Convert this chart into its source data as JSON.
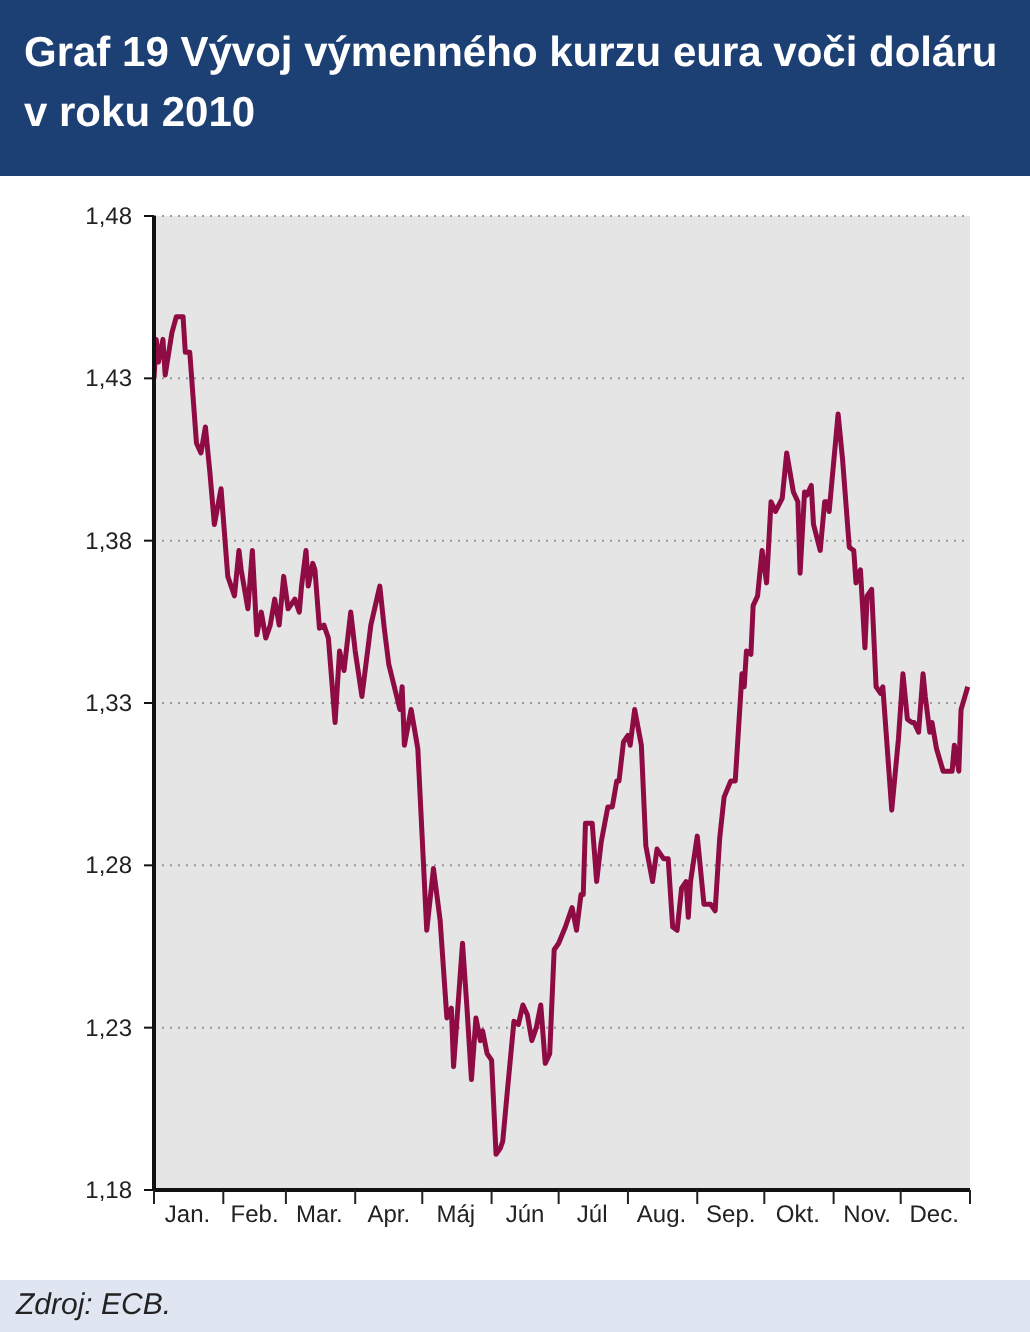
{
  "chart_data": {
    "type": "line",
    "title": "Graf 19 Vývoj výmenného kurzu eura voči doláru v roku 2010",
    "annotations": [
      "Zdroj: ECB."
    ],
    "xlim": [
      "2010-01-01",
      "2011-01-01"
    ],
    "xticks": [
      {
        "value": "2010-01-01",
        "label": null
      },
      {
        "value": "2010-01-16",
        "label": "Jan."
      },
      {
        "value": "2010-02-01",
        "label": null
      },
      {
        "value": "2010-02-15",
        "label": "Feb."
      },
      {
        "value": "2010-03-01",
        "label": null
      },
      {
        "value": "2010-03-16",
        "label": "Mar."
      },
      {
        "value": "2010-04-01",
        "label": null
      },
      {
        "value": "2010-04-16",
        "label": "Apr."
      },
      {
        "value": "2010-05-01",
        "label": null
      },
      {
        "value": "2010-05-16",
        "label": "Máj"
      },
      {
        "value": "2010-06-01",
        "label": null
      },
      {
        "value": "2010-06-16",
        "label": "Jún"
      },
      {
        "value": "2010-07-01",
        "label": null
      },
      {
        "value": "2010-07-16",
        "label": "Júl"
      },
      {
        "value": "2010-08-01",
        "label": null
      },
      {
        "value": "2010-08-16",
        "label": "Aug."
      },
      {
        "value": "2010-09-01",
        "label": null
      },
      {
        "value": "2010-09-16",
        "label": "Sep."
      },
      {
        "value": "2010-10-01",
        "label": null
      },
      {
        "value": "2010-10-16",
        "label": "Okt."
      },
      {
        "value": "2010-11-01",
        "label": null
      },
      {
        "value": "2010-11-16",
        "label": "Nov."
      },
      {
        "value": "2010-12-01",
        "label": null
      },
      {
        "value": "2010-12-16",
        "label": "Dec."
      },
      {
        "value": "2011-01-01",
        "label": null
      }
    ],
    "ylim": [
      1.18,
      1.48
    ],
    "yticks": [
      {
        "value": 1.18,
        "label": "1,18"
      },
      {
        "value": 1.23,
        "label": "1,23"
      },
      {
        "value": 1.28,
        "label": "1,28"
      },
      {
        "value": 1.33,
        "label": "1,33"
      },
      {
        "value": 1.38,
        "label": "1,38"
      },
      {
        "value": 1.43,
        "label": "1,43"
      },
      {
        "value": 1.48,
        "label": "1,48"
      }
    ],
    "grid": "y",
    "legend": false,
    "marker": "none",
    "line_style": "solid",
    "series": [
      {
        "color": "#8e0b43",
        "x": [
          "2010-01-01",
          "2010-01-02",
          "2010-01-03",
          "2010-01-05",
          "2010-01-06",
          "2010-01-09",
          "2010-01-11",
          "2010-01-14",
          "2010-01-15",
          "2010-01-17",
          "2010-01-20",
          "2010-01-22",
          "2010-01-24",
          "2010-01-26",
          "2010-01-28",
          "2010-01-31",
          "2010-02-03",
          "2010-02-06",
          "2010-02-08",
          "2010-02-09",
          "2010-02-12",
          "2010-02-14",
          "2010-02-16",
          "2010-02-18",
          "2010-02-20",
          "2010-02-22",
          "2010-02-24",
          "2010-02-26",
          "2010-02-28",
          "2010-03-02",
          "2010-03-05",
          "2010-03-07",
          "2010-03-08",
          "2010-03-10",
          "2010-03-11",
          "2010-03-13",
          "2010-03-14",
          "2010-03-16",
          "2010-03-18",
          "2010-03-20",
          "2010-03-23",
          "2010-03-25",
          "2010-03-27",
          "2010-03-30",
          "2010-04-01",
          "2010-04-04",
          "2010-04-08",
          "2010-04-12",
          "2010-04-14",
          "2010-04-16",
          "2010-04-21",
          "2010-04-22",
          "2010-04-23",
          "2010-04-26",
          "2010-04-29",
          "2010-05-03",
          "2010-05-06",
          "2010-05-09",
          "2010-05-10",
          "2010-05-12",
          "2010-05-14",
          "2010-05-15",
          "2010-05-19",
          "2010-05-21",
          "2010-05-23",
          "2010-05-25",
          "2010-05-27",
          "2010-05-28",
          "2010-05-30",
          "2010-06-01",
          "2010-06-03",
          "2010-06-05",
          "2010-06-06",
          "2010-06-08",
          "2010-06-11",
          "2010-06-13",
          "2010-06-15",
          "2010-06-17",
          "2010-06-19",
          "2010-06-21",
          "2010-06-23",
          "2010-06-25",
          "2010-06-27",
          "2010-06-29",
          "2010-07-01",
          "2010-07-04",
          "2010-07-07",
          "2010-07-09",
          "2010-07-11",
          "2010-07-12",
          "2010-07-13",
          "2010-07-16",
          "2010-07-18",
          "2010-07-20",
          "2010-07-23",
          "2010-07-25",
          "2010-07-27",
          "2010-07-28",
          "2010-07-30",
          "2010-08-01",
          "2010-08-02",
          "2010-08-04",
          "2010-08-07",
          "2010-08-09",
          "2010-08-12",
          "2010-08-14",
          "2010-08-17",
          "2010-08-19",
          "2010-08-21",
          "2010-08-23",
          "2010-08-25",
          "2010-08-27",
          "2010-08-28",
          "2010-08-29",
          "2010-09-01",
          "2010-09-04",
          "2010-09-07",
          "2010-09-09",
          "2010-09-11",
          "2010-09-13",
          "2010-09-16",
          "2010-09-18",
          "2010-09-21",
          "2010-09-22",
          "2010-09-23",
          "2010-09-25",
          "2010-09-26",
          "2010-09-28",
          "2010-09-30",
          "2010-10-02",
          "2010-10-04",
          "2010-10-06",
          "2010-10-09",
          "2010-10-11",
          "2010-10-14",
          "2010-10-16",
          "2010-10-17",
          "2010-10-19",
          "2010-10-20",
          "2010-10-22",
          "2010-10-23",
          "2010-10-26",
          "2010-10-28",
          "2010-10-29",
          "2010-10-30",
          "2010-11-01",
          "2010-11-03",
          "2010-11-05",
          "2010-11-08",
          "2010-11-10",
          "2010-11-11",
          "2010-11-13",
          "2010-11-15",
          "2010-11-16",
          "2010-11-18",
          "2010-11-20",
          "2010-11-22",
          "2010-11-23",
          "2010-11-25",
          "2010-11-27",
          "2010-11-30",
          "2010-12-02",
          "2010-12-04",
          "2010-12-06",
          "2010-12-07",
          "2010-12-09",
          "2010-12-11",
          "2010-12-12",
          "2010-12-14",
          "2010-12-15",
          "2010-12-17",
          "2010-12-20",
          "2010-12-23",
          "2010-12-24",
          "2010-12-25",
          "2010-12-27",
          "2010-12-28",
          "2010-12-31"
        ],
        "values": [
          1.43,
          1.442,
          1.435,
          1.442,
          1.431,
          1.444,
          1.449,
          1.449,
          1.438,
          1.438,
          1.41,
          1.407,
          1.415,
          1.401,
          1.385,
          1.396,
          1.369,
          1.363,
          1.377,
          1.371,
          1.359,
          1.377,
          1.351,
          1.358,
          1.35,
          1.354,
          1.362,
          1.354,
          1.369,
          1.359,
          1.362,
          1.358,
          1.366,
          1.377,
          1.366,
          1.373,
          1.371,
          1.353,
          1.354,
          1.35,
          1.324,
          1.346,
          1.34,
          1.358,
          1.346,
          1.332,
          1.354,
          1.366,
          1.353,
          1.342,
          1.328,
          1.335,
          1.317,
          1.328,
          1.316,
          1.26,
          1.279,
          1.263,
          1.253,
          1.233,
          1.236,
          1.218,
          1.256,
          1.236,
          1.214,
          1.233,
          1.226,
          1.229,
          1.222,
          1.22,
          1.191,
          1.193,
          1.195,
          1.21,
          1.232,
          1.231,
          1.237,
          1.234,
          1.226,
          1.23,
          1.237,
          1.219,
          1.222,
          1.254,
          1.256,
          1.261,
          1.267,
          1.26,
          1.271,
          1.271,
          1.293,
          1.293,
          1.275,
          1.287,
          1.298,
          1.298,
          1.306,
          1.306,
          1.318,
          1.32,
          1.317,
          1.328,
          1.317,
          1.286,
          1.275,
          1.285,
          1.282,
          1.282,
          1.261,
          1.26,
          1.273,
          1.275,
          1.264,
          1.275,
          1.289,
          1.268,
          1.268,
          1.266,
          1.288,
          1.301,
          1.306,
          1.306,
          1.339,
          1.335,
          1.346,
          1.345,
          1.36,
          1.363,
          1.377,
          1.367,
          1.392,
          1.389,
          1.393,
          1.407,
          1.395,
          1.392,
          1.37,
          1.395,
          1.394,
          1.397,
          1.385,
          1.377,
          1.392,
          1.392,
          1.389,
          1.404,
          1.419,
          1.405,
          1.378,
          1.377,
          1.367,
          1.371,
          1.347,
          1.363,
          1.365,
          1.335,
          1.333,
          1.335,
          1.316,
          1.297,
          1.319,
          1.339,
          1.325,
          1.324,
          1.324,
          1.321,
          1.339,
          1.332,
          1.321,
          1.324,
          1.316,
          1.309,
          1.309,
          1.309,
          1.317,
          1.309,
          1.328,
          1.335
        ]
      }
    ]
  }
}
